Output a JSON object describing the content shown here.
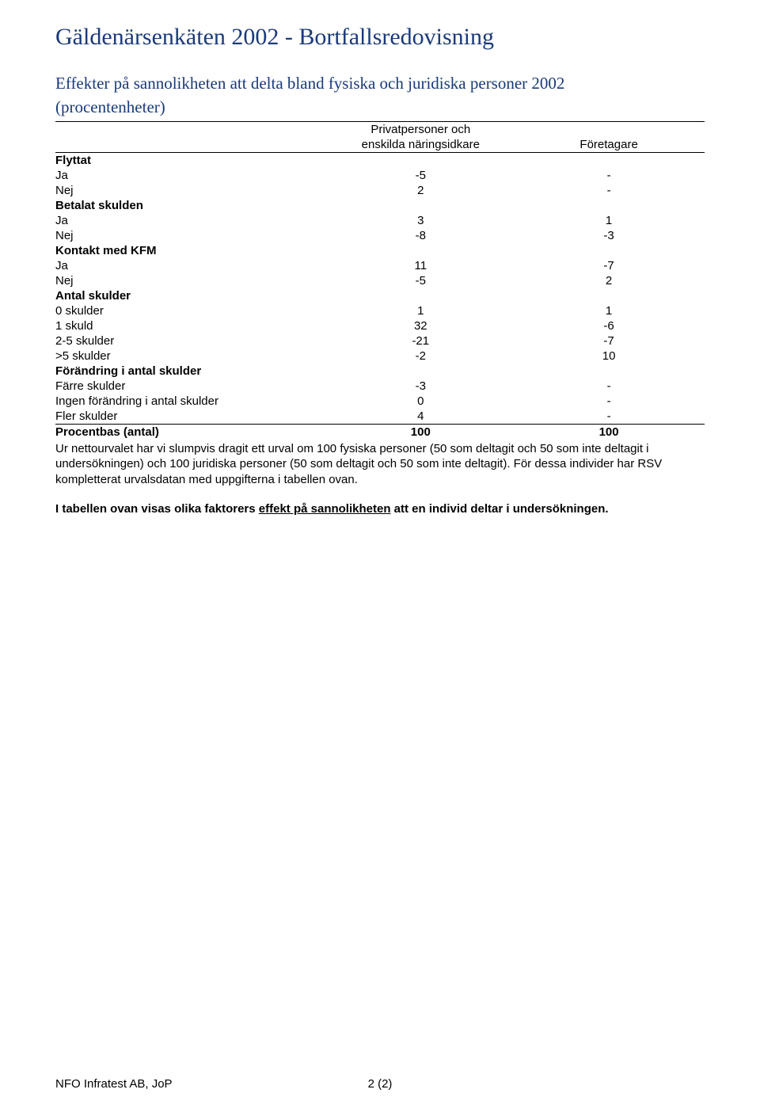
{
  "colors": {
    "heading": "#1a3a7a",
    "text": "#000000",
    "background": "#ffffff",
    "rule": "#000000"
  },
  "typography": {
    "heading_family": "Times New Roman",
    "body_family": "Arial",
    "title_size_pt": 22,
    "subtitle_size_pt": 16,
    "body_size_pt": 11
  },
  "title": "Gäldenärsenkäten 2002 - Bortfallsredovisning",
  "subtitle_line1": "Effekter på sannolikheten att delta bland fysiska och juridiska personer 2002",
  "subtitle_line2": "(procentenheter)",
  "table": {
    "type": "table",
    "columns": {
      "label": "",
      "col_a_line1": "Privatpersoner och",
      "col_a_line2": "enskilda näringsidkare",
      "col_b": "Företagare"
    },
    "sections": [
      {
        "header": "Flyttat",
        "rows": [
          {
            "label": "Ja",
            "a": "-5",
            "b": "-"
          },
          {
            "label": "Nej",
            "a": "2",
            "b": "-"
          }
        ]
      },
      {
        "header": "Betalat skulden",
        "rows": [
          {
            "label": "Ja",
            "a": "3",
            "b": "1"
          },
          {
            "label": "Nej",
            "a": "-8",
            "b": "-3"
          }
        ]
      },
      {
        "header": "Kontakt med KFM",
        "rows": [
          {
            "label": "Ja",
            "a": "11",
            "b": "-7"
          },
          {
            "label": "Nej",
            "a": "-5",
            "b": "2"
          }
        ]
      },
      {
        "header": "Antal skulder",
        "rows": [
          {
            "label": "0 skulder",
            "a": "1",
            "b": "1"
          },
          {
            "label": "1 skuld",
            "a": "32",
            "b": "-6"
          },
          {
            "label": "2-5 skulder",
            "a": "-21",
            "b": "-7"
          },
          {
            "label": ">5 skulder",
            "a": "-2",
            "b": "10"
          }
        ]
      },
      {
        "header": "Förändring i antal skulder",
        "rows": [
          {
            "label": "Färre skulder",
            "a": "-3",
            "b": "-"
          },
          {
            "label": "Ingen förändring i antal skulder",
            "a": "0",
            "b": "-"
          },
          {
            "label": "Fler skulder",
            "a": "4",
            "b": "-"
          }
        ]
      }
    ],
    "total_row": {
      "label": "Procentbas (antal)",
      "a": "100",
      "b": "100"
    }
  },
  "note": "Ur nettourvalet har vi slumpvis dragit ett urval om 100 fysiska personer (50 som deltagit och 50 som inte deltagit i undersökningen) och 100 juridiska personer (50 som deltagit och 50 som inte deltagit). För dessa individer har RSV kompletterat urvalsdatan med uppgifterna i tabellen ovan.",
  "note2_pre": "I tabellen ovan visas olika faktorers ",
  "note2_underlined": "effekt på sannolikheten",
  "note2_post": " att en individ deltar i undersökningen.",
  "footer_left": "NFO Infratest AB, JoP",
  "footer_page": "2 (2)"
}
